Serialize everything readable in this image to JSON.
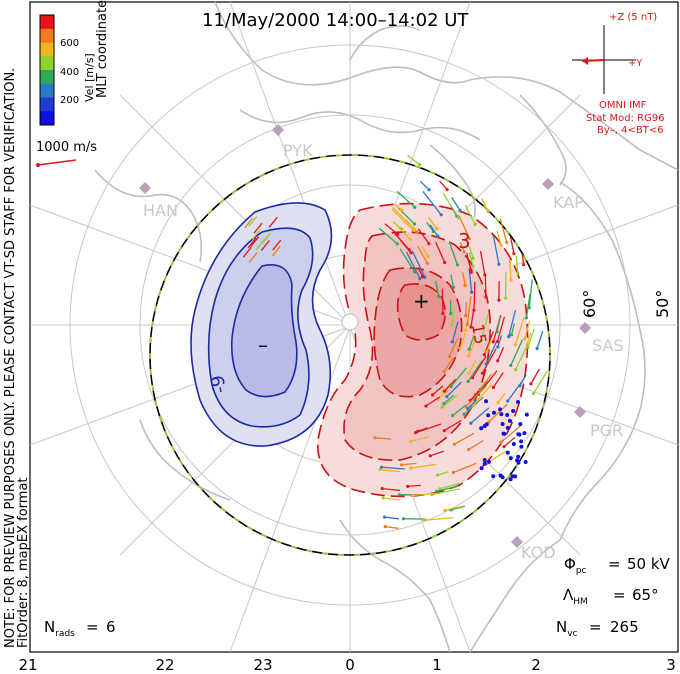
{
  "title": "11/May/2000  14:00–14:02  UT",
  "coordinates_label": "MLT coordinates",
  "vel_label": "Vel [m/s]",
  "vel_ticks": [
    "600",
    "400",
    "200"
  ],
  "vel_colors": [
    "#e8141c",
    "#f27a1c",
    "#f0b41c",
    "#8ed428",
    "#2ea85a",
    "#2a78c8",
    "#1e3cd2",
    "#1010e0"
  ],
  "vector_scale_label": "1000 m/s",
  "note": "NOTE: FOR PREVIEW PURPOSES ONLY. PLEASE CONTACT VT-SD STAFF FOR VERIFICATION.",
  "fit_order": "FitOrder: 8, mapEX format",
  "imf": {
    "z_label": "+Z (5 nT)",
    "y_label": "+Y",
    "source": "OMNI IMF",
    "stat_mod": "Stat Mod: RG96",
    "condition": "By–, 4<BT<6"
  },
  "stations": [
    "PYK",
    "HAN",
    "KAP",
    "SAS",
    "PGR",
    "KOD"
  ],
  "lat_labels": [
    "60°",
    "50°"
  ],
  "contour_labels": [
    "3",
    "15",
    "-9"
  ],
  "extrema": [
    "+",
    "–"
  ],
  "mlt_labels": [
    "21",
    "22",
    "23",
    "0",
    "1",
    "2",
    "3"
  ],
  "stats": {
    "phi_pc_value": "50 kV",
    "lambda_hm_value": "65°",
    "n_vc_value": "265",
    "n_rads_value": "6"
  },
  "colors": {
    "positive": "#cc1111",
    "negative": "#1a2aa8",
    "imf": "#d81818",
    "land": "#bdbdbd",
    "grid": "#c8c8c8"
  }
}
